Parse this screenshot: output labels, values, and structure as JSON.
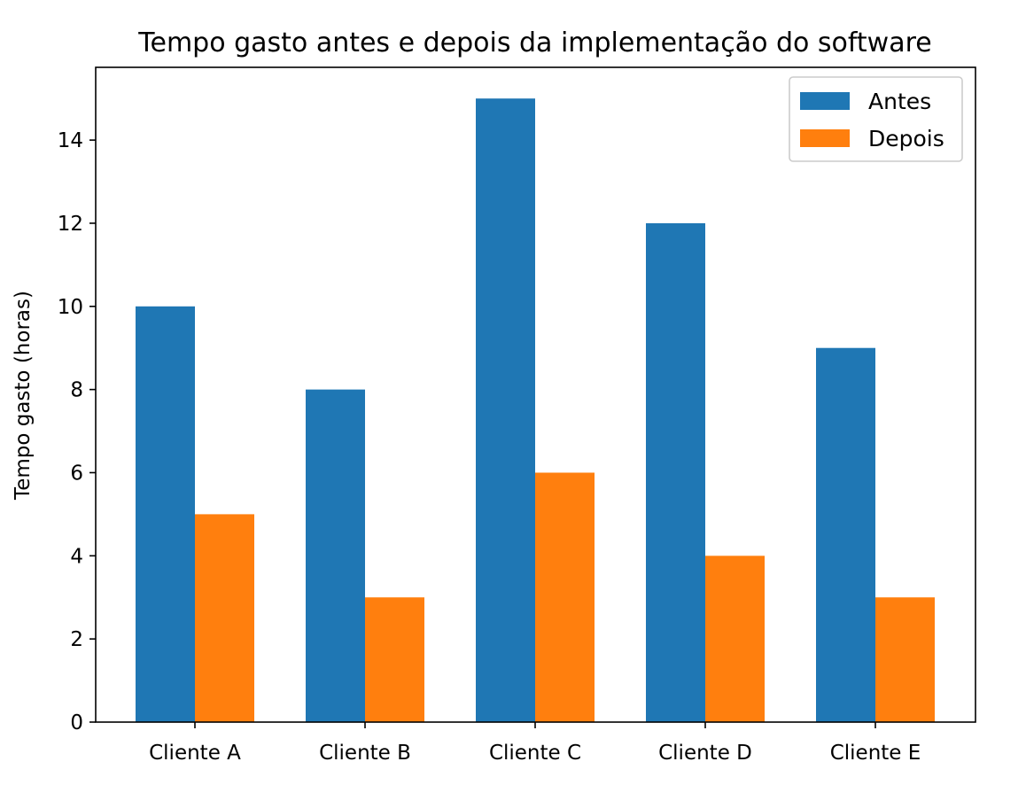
{
  "chart_data": {
    "type": "bar",
    "title": "Tempo gasto antes e depois da implementação do software",
    "xlabel": "",
    "ylabel": "Tempo gasto (horas)",
    "categories": [
      "Cliente A",
      "Cliente B",
      "Cliente C",
      "Cliente D",
      "Cliente E"
    ],
    "series": [
      {
        "name": "Antes",
        "values": [
          10,
          8,
          15,
          12,
          9
        ],
        "color": "#1f77b4"
      },
      {
        "name": "Depois",
        "values": [
          5,
          3,
          6,
          4,
          3
        ],
        "color": "#ff7f0e"
      }
    ],
    "ylim": [
      0,
      15.75
    ],
    "yticks": [
      0,
      2,
      4,
      6,
      8,
      10,
      12,
      14
    ],
    "grid": false,
    "legend_position": "top-right"
  }
}
